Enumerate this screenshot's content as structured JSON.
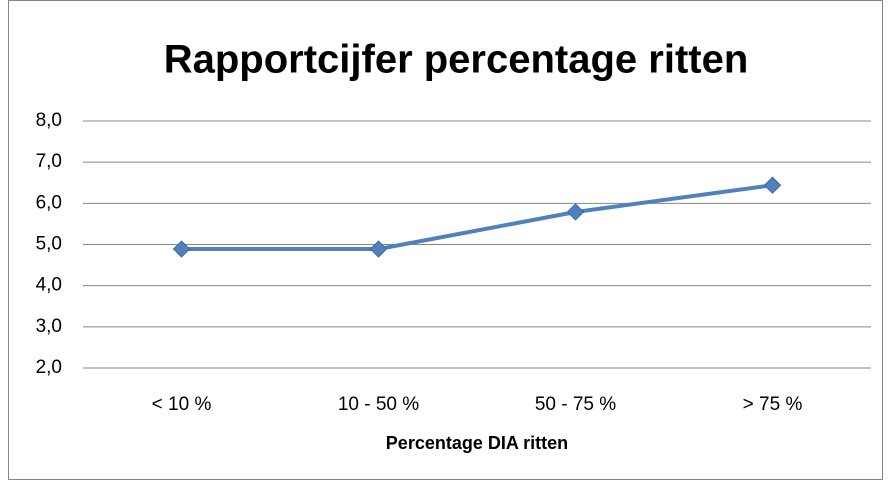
{
  "chart_data": {
    "type": "line",
    "title": "Rapportcijfer percentage ritten",
    "x_label": "Percentage DIA ritten",
    "categories": [
      "< 10 %",
      "10 - 50 %",
      "50 - 75 %",
      "> 75 %"
    ],
    "series": [
      {
        "name": "Rapportcijfer",
        "color": "#4f81bd",
        "values": [
          4.89,
          4.89,
          5.79,
          6.44
        ]
      }
    ],
    "ylim": [
      2,
      8
    ],
    "yticks": [
      {
        "value": 2,
        "label": "2,0"
      },
      {
        "value": 3,
        "label": "3,0"
      },
      {
        "value": 4,
        "label": "4,0"
      },
      {
        "value": 5,
        "label": "5,0"
      },
      {
        "value": 6,
        "label": "6,0"
      },
      {
        "value": 7,
        "label": "7,0"
      },
      {
        "value": 8,
        "label": "8,0"
      }
    ],
    "grid": true,
    "legend": false
  }
}
